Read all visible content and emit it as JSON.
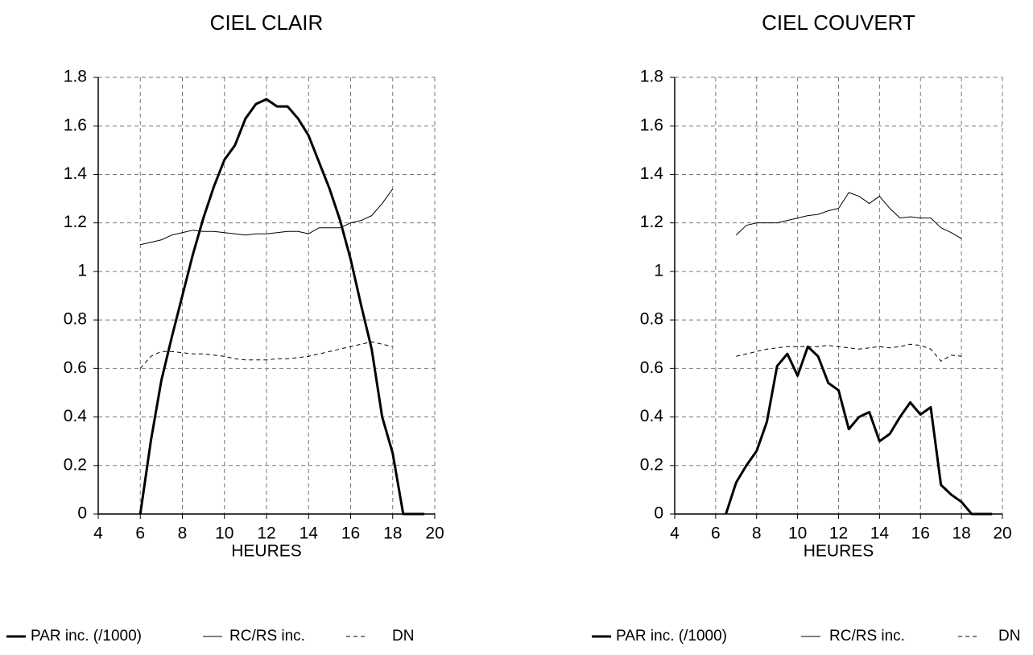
{
  "chart_data": [
    {
      "type": "line",
      "title": "CIEL CLAIR",
      "x_label": "HEURES",
      "xlim": [
        4,
        20
      ],
      "xticks": [
        4,
        6,
        8,
        10,
        12,
        14,
        16,
        18,
        20
      ],
      "ylim": [
        0,
        1.8
      ],
      "yticks": [
        0,
        0.2,
        0.4,
        0.6,
        0.8,
        1,
        1.2,
        1.4,
        1.6,
        1.8
      ],
      "grid": true,
      "legend": "bottom",
      "series": [
        {
          "name": "PAR inc. (/1000)",
          "color": "#000000",
          "linewidth": 3,
          "linestyle": "solid",
          "x": [
            6,
            6.5,
            7,
            7.5,
            8,
            8.5,
            9,
            9.5,
            10,
            10.5,
            11,
            11.5,
            12,
            12.5,
            13,
            13.5,
            14,
            14.5,
            15,
            15.5,
            16,
            16.5,
            17,
            17.5,
            18,
            18.5,
            19,
            19.5
          ],
          "values": [
            0,
            0.3,
            0.55,
            0.73,
            0.9,
            1.07,
            1.22,
            1.35,
            1.46,
            1.52,
            1.63,
            1.69,
            1.71,
            1.68,
            1.68,
            1.63,
            1.56,
            1.45,
            1.34,
            1.21,
            1.05,
            0.86,
            0.68,
            0.4,
            0.25,
            0,
            0,
            0
          ]
        },
        {
          "name": "RC/RS inc.",
          "color": "#000000",
          "linewidth": 1,
          "linestyle": "solid",
          "x": [
            6,
            6.5,
            7,
            7.5,
            8,
            8.5,
            9,
            9.5,
            10,
            10.5,
            11,
            11.5,
            12,
            12.5,
            13,
            13.5,
            14,
            14.5,
            15,
            15.5,
            16,
            16.5,
            17,
            17.5,
            18
          ],
          "values": [
            1.11,
            1.12,
            1.13,
            1.15,
            1.16,
            1.17,
            1.165,
            1.165,
            1.16,
            1.155,
            1.15,
            1.155,
            1.155,
            1.16,
            1.165,
            1.165,
            1.155,
            1.18,
            1.18,
            1.18,
            1.2,
            1.21,
            1.23,
            1.28,
            1.34
          ]
        },
        {
          "name": "DN",
          "color": "#000000",
          "linewidth": 1,
          "linestyle": "dashed",
          "x": [
            6,
            6.5,
            7,
            7.5,
            8,
            8.5,
            9,
            9.5,
            10,
            10.5,
            11,
            11.5,
            12,
            12.5,
            13,
            13.5,
            14,
            14.5,
            15,
            15.5,
            16,
            16.5,
            17,
            17.5,
            18
          ],
          "values": [
            0.6,
            0.65,
            0.67,
            0.67,
            0.665,
            0.66,
            0.66,
            0.655,
            0.65,
            0.64,
            0.635,
            0.635,
            0.635,
            0.64,
            0.64,
            0.645,
            0.65,
            0.66,
            0.67,
            0.68,
            0.69,
            0.7,
            0.71,
            0.7,
            0.69
          ]
        }
      ]
    },
    {
      "type": "line",
      "title": "CIEL COUVERT",
      "x_label": "HEURES",
      "xlim": [
        4,
        20
      ],
      "xticks": [
        4,
        6,
        8,
        10,
        12,
        14,
        16,
        18,
        20
      ],
      "ylim": [
        0,
        1.8
      ],
      "yticks": [
        0,
        0.2,
        0.4,
        0.6,
        0.8,
        1,
        1.2,
        1.4,
        1.6,
        1.8
      ],
      "grid": true,
      "legend": "bottom",
      "series": [
        {
          "name": "PAR inc. (/1000)",
          "color": "#000000",
          "linewidth": 3,
          "linestyle": "solid",
          "x": [
            6.5,
            7,
            7.5,
            8,
            8.5,
            9,
            9.5,
            10,
            10.5,
            11,
            11.5,
            12,
            12.5,
            13,
            13.5,
            14,
            14.5,
            15,
            15.5,
            16,
            16.5,
            17,
            17.5,
            18,
            18.5,
            19,
            19.5
          ],
          "values": [
            0,
            0.13,
            0.2,
            0.26,
            0.38,
            0.61,
            0.66,
            0.57,
            0.69,
            0.65,
            0.54,
            0.51,
            0.35,
            0.4,
            0.42,
            0.3,
            0.33,
            0.4,
            0.46,
            0.41,
            0.44,
            0.12,
            0.08,
            0.05,
            0,
            0,
            0
          ]
        },
        {
          "name": "RC/RS inc.",
          "color": "#000000",
          "linewidth": 1,
          "linestyle": "solid",
          "x": [
            7,
            7.5,
            8,
            8.5,
            9,
            9.5,
            10,
            10.5,
            11,
            11.5,
            12,
            12.5,
            13,
            13.5,
            14,
            14.5,
            15,
            15.5,
            16,
            16.5,
            17,
            17.5,
            18
          ],
          "values": [
            1.15,
            1.19,
            1.2,
            1.2,
            1.2,
            1.21,
            1.22,
            1.23,
            1.235,
            1.25,
            1.26,
            1.325,
            1.31,
            1.28,
            1.31,
            1.26,
            1.22,
            1.225,
            1.22,
            1.22,
            1.18,
            1.16,
            1.135
          ]
        },
        {
          "name": "DN",
          "color": "#000000",
          "linewidth": 1,
          "linestyle": "dashed",
          "x": [
            7,
            7.5,
            8,
            8.5,
            9,
            9.5,
            10,
            10.5,
            11,
            11.5,
            12,
            12.5,
            13,
            13.5,
            14,
            14.5,
            15,
            15.5,
            16,
            16.5,
            17,
            17.5,
            18
          ],
          "values": [
            0.65,
            0.66,
            0.67,
            0.68,
            0.685,
            0.69,
            0.69,
            0.69,
            0.69,
            0.695,
            0.69,
            0.685,
            0.68,
            0.685,
            0.69,
            0.685,
            0.69,
            0.7,
            0.695,
            0.68,
            0.63,
            0.655,
            0.65
          ]
        }
      ]
    }
  ]
}
